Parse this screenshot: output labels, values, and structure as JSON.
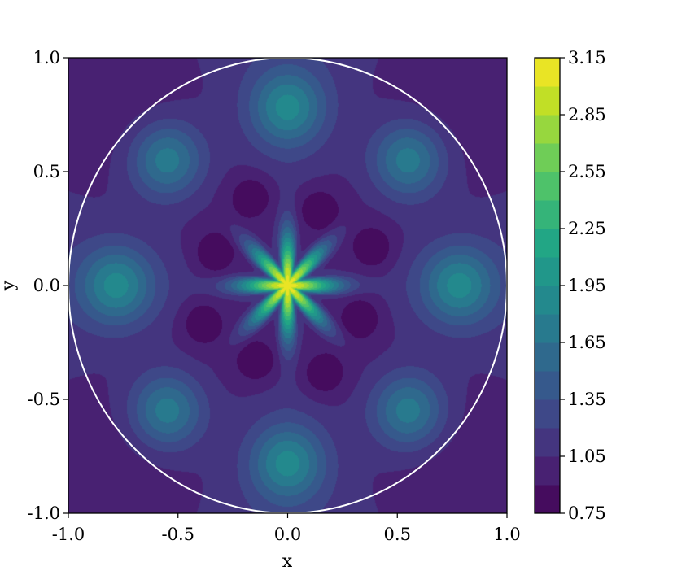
{
  "chart_data": {
    "type": "heatmap",
    "style": "filled-contour",
    "xlabel": "x",
    "ylabel": "y",
    "xlim": [
      -1.0,
      1.0
    ],
    "ylim": [
      -1.0,
      1.0
    ],
    "x_ticks": [
      "-1.0",
      "-0.5",
      "0.0",
      "0.5",
      "1.0"
    ],
    "y_ticks": [
      "-1.0",
      "-0.5",
      "0.0",
      "0.5",
      "1.0"
    ],
    "x_tick_values": [
      -1.0,
      -0.5,
      0.0,
      0.5,
      1.0
    ],
    "y_tick_values": [
      -1.0,
      -0.5,
      0.0,
      0.5,
      1.0
    ],
    "colormap": "viridis",
    "colorbar": {
      "range": [
        0.75,
        3.15
      ],
      "ticks": [
        "0.75",
        "1.05",
        "1.35",
        "1.65",
        "1.95",
        "2.25",
        "2.55",
        "2.85",
        "3.15"
      ],
      "tick_values": [
        0.75,
        1.05,
        1.35,
        1.65,
        1.95,
        2.25,
        2.55,
        2.85,
        3.15
      ],
      "level_step": 0.15
    },
    "overlay": {
      "shape": "unit-circle",
      "center": [
        0,
        0
      ],
      "radius": 1.0,
      "color": "#ffffff"
    },
    "field_features": {
      "center_peak": {
        "x": 0.0,
        "y": 0.0,
        "value": 3.1
      },
      "central_star_arms": 8,
      "secondary_maxima": [
        {
          "x": 0.0,
          "y": 0.78,
          "value": 1.8
        },
        {
          "x": 0.0,
          "y": -0.78,
          "value": 1.8
        },
        {
          "x": 0.78,
          "y": 0.0,
          "value": 1.8
        },
        {
          "x": -0.78,
          "y": 0.0,
          "value": 1.8
        },
        {
          "x": 0.55,
          "y": 0.55,
          "value": 1.8
        },
        {
          "x": -0.55,
          "y": 0.55,
          "value": 1.8
        },
        {
          "x": 0.55,
          "y": -0.55,
          "value": 1.8
        },
        {
          "x": -0.55,
          "y": -0.55,
          "value": 1.8
        }
      ],
      "minima_value": 0.8
    }
  }
}
